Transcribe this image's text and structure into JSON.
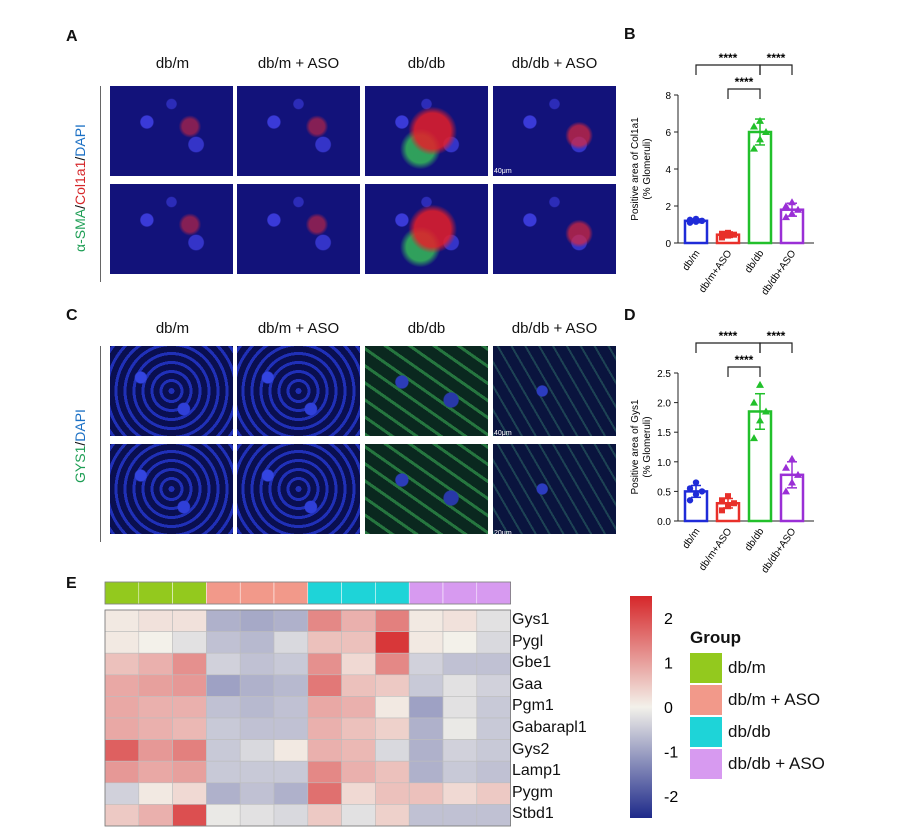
{
  "panels": {
    "A": "A",
    "B": "B",
    "C": "C",
    "D": "D",
    "E": "E"
  },
  "columns": [
    "db/m",
    "db/m + ASO",
    "db/db",
    "db/db + ASO"
  ],
  "stain_a": {
    "part1": "α-SMA",
    "sep1": "/",
    "part2": "Col1a1",
    "sep2": "/",
    "part3": "DAPI"
  },
  "stain_c": {
    "part1": "GYS1",
    "sep1": "/",
    "part2": "DAPI"
  },
  "scalebars": {
    "top": "40μm",
    "bottom": "20μm"
  },
  "colors": {
    "db_m": "#1f2bd8",
    "db_m_aso": "#e8302a",
    "db_db": "#22c02b",
    "db_db_aso": "#9a2fd6",
    "heat_high": "#d6272a",
    "heat_mid": "#f3f1ea",
    "heat_low": "#1e2a8a",
    "grp_db_m": "#93c91e",
    "grp_db_m_aso": "#f2998a",
    "grp_db_db": "#1ed4d8",
    "grp_db_db_aso": "#d79af0"
  },
  "chart_data": [
    {
      "type": "bar",
      "panel": "B",
      "categories": [
        "db/m",
        "db/m+ASO",
        "db/db",
        "db/db+ASO"
      ],
      "values": [
        1.2,
        0.45,
        6.0,
        1.8
      ],
      "errors": [
        0.1,
        0.15,
        0.7,
        0.35
      ],
      "points": [
        [
          1.1,
          1.15,
          1.2,
          1.25,
          1.3
        ],
        [
          0.3,
          0.4,
          0.45,
          0.5,
          0.55
        ],
        [
          5.1,
          5.6,
          6.0,
          6.3,
          6.6
        ],
        [
          1.4,
          1.6,
          1.8,
          2.0,
          2.2
        ]
      ],
      "ylabel": "Positive area of Col1a1\n(% Glomeruli)",
      "ylabel_line1": "Positive area of Col1a1",
      "ylabel_line2": "(% Glomeruli)",
      "ylim": [
        0,
        8
      ],
      "yticks": [
        "0",
        "2",
        "4",
        "6",
        "8"
      ],
      "significance": [
        "****",
        "****",
        "****"
      ]
    },
    {
      "type": "bar",
      "panel": "D",
      "categories": [
        "db/m",
        "db/m+ASO",
        "db/db",
        "db/db+ASO"
      ],
      "values": [
        0.5,
        0.3,
        1.85,
        0.78
      ],
      "errors": [
        0.1,
        0.08,
        0.3,
        0.22
      ],
      "points": [
        [
          0.35,
          0.45,
          0.5,
          0.55,
          0.65
        ],
        [
          0.18,
          0.25,
          0.3,
          0.35,
          0.42
        ],
        [
          1.4,
          1.7,
          1.85,
          2.0,
          2.3
        ],
        [
          0.5,
          0.65,
          0.78,
          0.9,
          1.05
        ]
      ],
      "ylabel": "Positive area of Gys1\n(% Glomeruli)",
      "ylabel_line1": "Positive area of Gys1",
      "ylabel_line2": "(% Glomeruli)",
      "ylim": [
        0,
        2.5
      ],
      "yticks": [
        "0.0",
        "0.5",
        "1.0",
        "1.5",
        "2.0",
        "2.5"
      ],
      "significance": [
        "****",
        "****",
        "****"
      ]
    },
    {
      "type": "heatmap",
      "panel": "E",
      "rows": [
        "Gys1",
        "Pygl",
        "Gbe1",
        "Gaa",
        "Pgm1",
        "Gabarapl1",
        "Gys2",
        "Lamp1",
        "Pygm",
        "Stbd1"
      ],
      "group_legend_title": "Group",
      "groups": [
        "db/m",
        "db/m + ASO",
        "db/db",
        "db/db + ASO"
      ],
      "colorbar_ticks": [
        "2",
        "1",
        "0",
        "-1",
        "-2"
      ],
      "colorbar_range": [
        -2.5,
        2.5
      ],
      "values": [
        [
          0.1,
          0.2,
          0.2,
          -0.8,
          -0.9,
          -0.8,
          1.3,
          0.8,
          1.4,
          0.1,
          0.2,
          -0.2
        ],
        [
          0.1,
          0.0,
          -0.2,
          -0.6,
          -0.7,
          -0.3,
          0.6,
          0.6,
          2.3,
          0.1,
          0.0,
          -0.3
        ],
        [
          0.6,
          0.8,
          1.2,
          -0.4,
          -0.6,
          -0.5,
          1.2,
          0.3,
          1.3,
          -0.4,
          -0.6,
          -0.6
        ],
        [
          0.9,
          1.0,
          1.1,
          -1.0,
          -0.8,
          -0.7,
          1.5,
          0.6,
          0.5,
          -0.5,
          -0.2,
          -0.4
        ],
        [
          0.9,
          0.8,
          0.8,
          -0.6,
          -0.7,
          -0.6,
          0.9,
          0.8,
          0.1,
          -1.0,
          -0.2,
          -0.5
        ],
        [
          0.9,
          0.8,
          0.7,
          -0.5,
          -0.6,
          -0.6,
          0.8,
          0.6,
          0.4,
          -0.8,
          -0.1,
          -0.5
        ],
        [
          1.8,
          1.1,
          1.4,
          -0.5,
          -0.3,
          0.1,
          0.8,
          0.7,
          -0.3,
          -0.8,
          -0.4,
          -0.5
        ],
        [
          1.1,
          0.9,
          1.0,
          -0.5,
          -0.5,
          -0.5,
          1.3,
          0.8,
          0.6,
          -0.8,
          -0.5,
          -0.6
        ],
        [
          -0.4,
          0.1,
          0.3,
          -0.8,
          -0.6,
          -0.8,
          1.6,
          0.3,
          0.6,
          0.6,
          0.3,
          0.5
        ],
        [
          0.5,
          0.8,
          2.0,
          -0.1,
          -0.2,
          -0.3,
          0.5,
          -0.2,
          0.4,
          -0.6,
          -0.6,
          -0.6
        ]
      ]
    }
  ]
}
